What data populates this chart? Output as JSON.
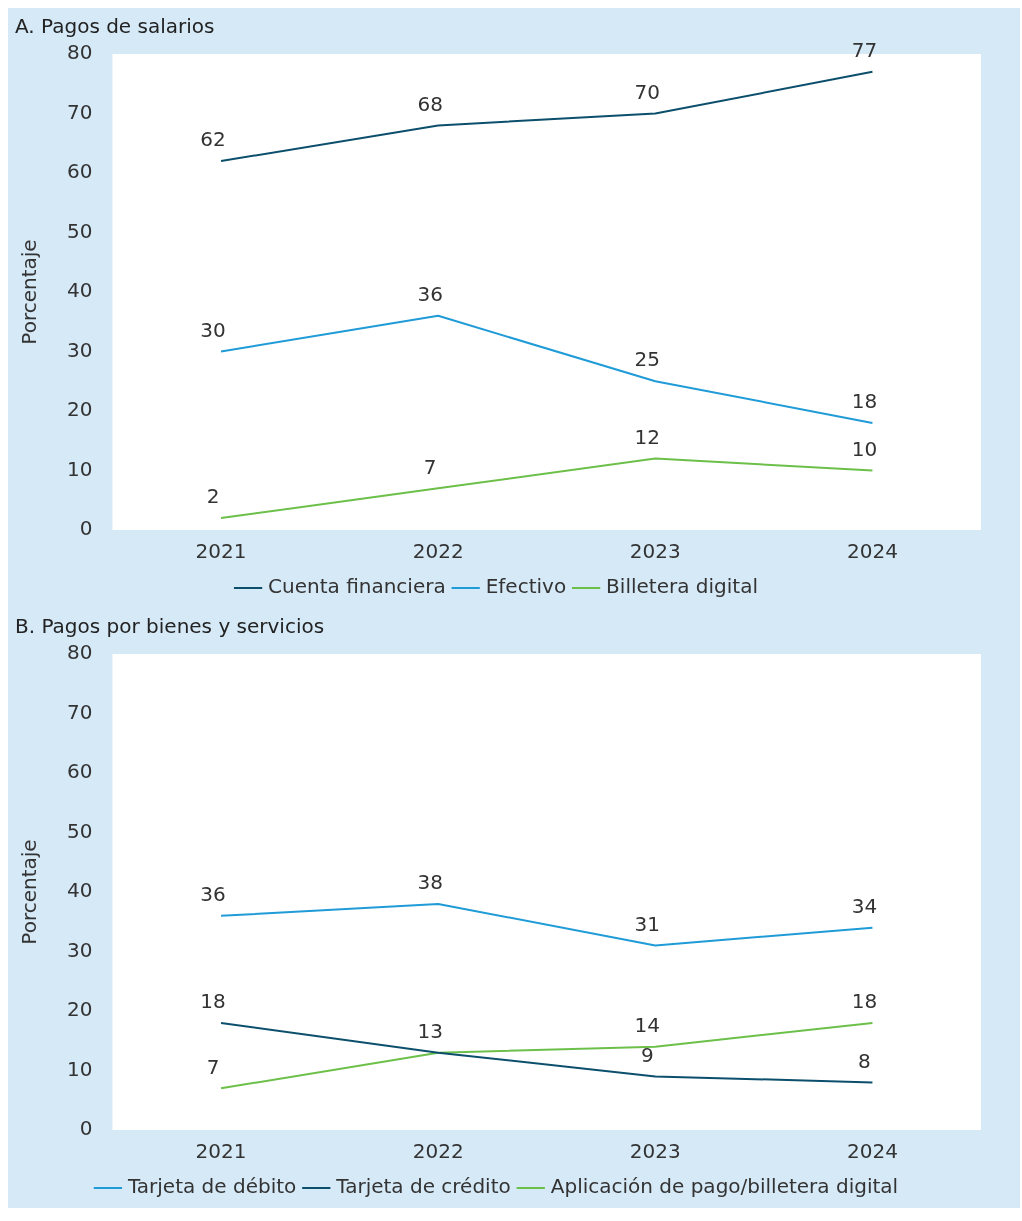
{
  "chart_data": [
    {
      "type": "line",
      "title": "A. Pagos de salarios",
      "ylabel": "Porcentaje",
      "categories": [
        "2021",
        "2022",
        "2023",
        "2024"
      ],
      "ylim": [
        0,
        80
      ],
      "yticks": [
        0,
        10,
        20,
        30,
        40,
        50,
        60,
        70,
        80
      ],
      "grid": false,
      "legend": "bottom",
      "marker": "none",
      "data_labels": true,
      "series": [
        {
          "name": "Cuenta financiera",
          "color": "#0b4f6c",
          "values": [
            62,
            68,
            70,
            77
          ]
        },
        {
          "name": "Efectivo",
          "color": "#1f9bd7",
          "values": [
            30,
            36,
            25,
            18
          ]
        },
        {
          "name": "Billetera digital",
          "color": "#6cc04a",
          "values": [
            2,
            7,
            12,
            10
          ]
        }
      ]
    },
    {
      "type": "line",
      "title": "B. Pagos por bienes y servicios",
      "ylabel": "Porcentaje",
      "categories": [
        "2021",
        "2022",
        "2023",
        "2024"
      ],
      "ylim": [
        0,
        80
      ],
      "yticks": [
        0,
        10,
        20,
        30,
        40,
        50,
        60,
        70,
        80
      ],
      "grid": false,
      "legend": "bottom",
      "marker": "none",
      "series": [
        {
          "name": "Tarjeta de débito",
          "color": "#1f9bd7",
          "values": [
            36,
            38,
            31,
            34
          ],
          "value_labels": [
            "36",
            "38",
            "31",
            "34"
          ]
        },
        {
          "name": "Tarjeta de crédito",
          "color": "#0b4f6c",
          "values": [
            18,
            13,
            9,
            8
          ],
          "value_labels": [
            "18",
            null,
            "9",
            "8"
          ]
        },
        {
          "name": "Aplicación de pago/billetera digital",
          "color": "#6cc04a",
          "values": [
            7,
            13,
            14,
            18
          ],
          "value_labels": [
            "7",
            "13",
            "14",
            "18"
          ]
        }
      ]
    }
  ]
}
